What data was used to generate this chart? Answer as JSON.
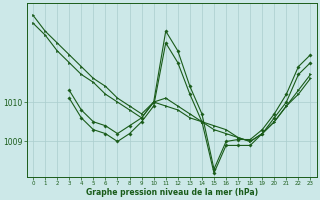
{
  "background_color": "#cce8e8",
  "grid_color": "#aacece",
  "line_color": "#1a5c1a",
  "xlabel": "Graphe pression niveau de la mer (hPa)",
  "xlim": [
    -0.5,
    23.5
  ],
  "ylim": [
    1008.1,
    1012.5
  ],
  "yticks": [
    1009,
    1010
  ],
  "xticks": [
    0,
    1,
    2,
    3,
    4,
    5,
    6,
    7,
    8,
    9,
    10,
    11,
    12,
    13,
    14,
    15,
    16,
    17,
    18,
    19,
    20,
    21,
    22,
    23
  ],
  "line1_x": [
    0,
    1,
    2,
    3,
    4,
    5,
    6,
    7,
    8,
    9,
    10,
    11,
    12,
    13,
    14,
    15,
    16,
    17,
    18,
    19,
    20,
    21,
    22,
    23
  ],
  "line1_y": [
    1012.2,
    1011.8,
    1011.5,
    1011.2,
    1010.9,
    1010.6,
    1010.4,
    1010.1,
    1009.9,
    1009.7,
    1010.0,
    1009.9,
    1009.8,
    1009.6,
    1009.5,
    1009.3,
    1009.2,
    1009.1,
    1009.0,
    1009.2,
    1009.5,
    1009.9,
    1010.3,
    1010.7
  ],
  "line2_x": [
    0,
    1,
    2,
    3,
    4,
    5,
    6,
    7,
    8,
    9,
    10,
    11,
    12,
    13,
    14,
    15,
    16,
    17,
    18,
    19,
    20,
    21,
    22,
    23
  ],
  "line2_y": [
    1012.0,
    1011.7,
    1011.3,
    1011.0,
    1010.7,
    1010.5,
    1010.2,
    1010.0,
    1009.8,
    1009.6,
    1010.0,
    1010.1,
    1009.9,
    1009.7,
    1009.5,
    1009.4,
    1009.3,
    1009.1,
    1009.0,
    1009.2,
    1009.5,
    1009.9,
    1010.2,
    1010.6
  ],
  "line3_x": [
    3,
    4,
    5,
    6,
    7,
    8,
    9,
    10,
    11,
    12,
    13,
    14,
    15,
    16,
    17,
    18,
    19,
    20,
    21,
    22,
    23
  ],
  "line3_y": [
    1010.3,
    1009.8,
    1009.5,
    1009.4,
    1009.2,
    1009.4,
    1009.6,
    1010.0,
    1011.8,
    1011.3,
    1010.4,
    1009.7,
    1008.3,
    1009.0,
    1009.05,
    1009.05,
    1009.3,
    1009.7,
    1010.2,
    1010.9,
    1011.2
  ],
  "line4_x": [
    3,
    4,
    5,
    6,
    7,
    8,
    9,
    10,
    11,
    12,
    13,
    14,
    15,
    16,
    17,
    18,
    19,
    20,
    21,
    22,
    23
  ],
  "line4_y": [
    1010.1,
    1009.6,
    1009.3,
    1009.2,
    1009.0,
    1009.2,
    1009.5,
    1009.9,
    1011.5,
    1011.0,
    1010.2,
    1009.5,
    1008.2,
    1008.9,
    1008.9,
    1008.9,
    1009.2,
    1009.6,
    1010.0,
    1010.7,
    1011.0
  ]
}
